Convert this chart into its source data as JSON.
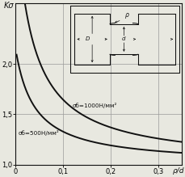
{
  "ylabel": "Kσ",
  "xlabel": "ρ/d",
  "xlim": [
    0,
    0.35
  ],
  "ylim": [
    1.0,
    2.6
  ],
  "xticks": [
    0,
    0.1,
    0.2,
    0.3
  ],
  "xticklabels": [
    "0",
    "0,1",
    "0,2",
    "0,3"
  ],
  "yticks": [
    1.0,
    1.5,
    2.0
  ],
  "yticklabels": [
    "1,0",
    "1,5",
    "2,0"
  ],
  "curve1_label": "σб=1000Н/мм²",
  "curve2_label": "σб=500Н/мм²",
  "background": "#e8e8e0",
  "line_color": "#111111",
  "grid_color": "#999999"
}
